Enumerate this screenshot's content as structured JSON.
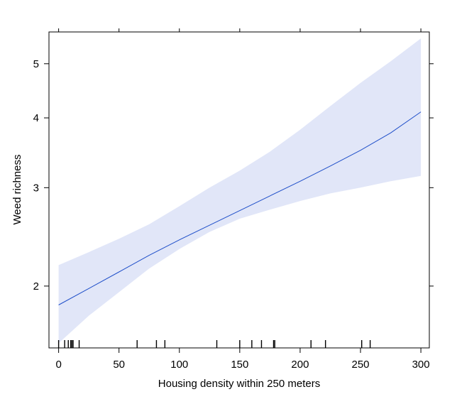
{
  "chart_data": {
    "type": "line",
    "title": "",
    "xlabel": "Housing density within 250 meters",
    "ylabel": "Weed richness",
    "xlim": [
      -8,
      307
    ],
    "ylim": [
      1.55,
      5.7
    ],
    "y_scale": "log",
    "grid": false,
    "x_ticks": [
      0,
      50,
      100,
      150,
      200,
      250,
      300
    ],
    "x_tick_labels": [
      "0",
      "50",
      "100",
      "150",
      "200",
      "250",
      "300"
    ],
    "y_ticks": [
      2,
      3,
      4,
      5
    ],
    "y_tick_labels": [
      "2",
      "3",
      "4",
      "5"
    ],
    "fit": {
      "x": [
        0,
        25,
        50,
        75,
        100,
        125,
        150,
        175,
        200,
        225,
        250,
        275,
        300
      ],
      "y": [
        1.85,
        1.98,
        2.12,
        2.27,
        2.42,
        2.57,
        2.73,
        2.9,
        3.08,
        3.28,
        3.5,
        3.76,
        4.1
      ]
    },
    "band": {
      "x": [
        0,
        25,
        50,
        75,
        100,
        125,
        150,
        175,
        200,
        225,
        250,
        275,
        300
      ],
      "lower": [
        1.58,
        1.77,
        1.95,
        2.15,
        2.33,
        2.5,
        2.64,
        2.74,
        2.84,
        2.93,
        3.0,
        3.08,
        3.15
      ],
      "upper": [
        2.18,
        2.3,
        2.43,
        2.58,
        2.78,
        3.0,
        3.22,
        3.48,
        3.81,
        4.2,
        4.62,
        5.05,
        5.55
      ]
    },
    "rug_x": [
      0,
      5,
      8,
      10,
      11,
      12,
      17,
      65,
      81,
      88,
      131,
      150,
      160,
      168,
      178,
      179,
      209,
      221,
      251,
      258
    ],
    "colors": {
      "band": "#e1e6f8",
      "line": "#1f4fc9",
      "axis": "#000000"
    }
  }
}
